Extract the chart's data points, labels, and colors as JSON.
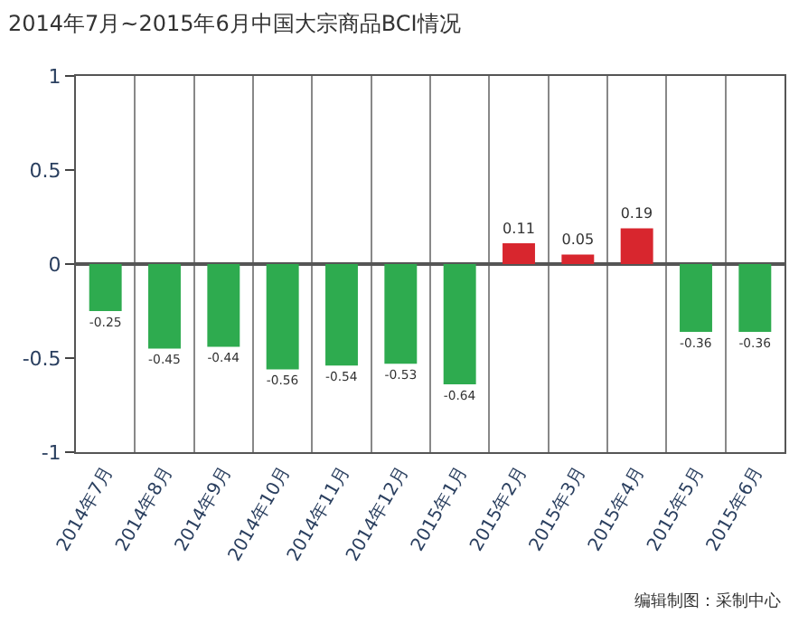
{
  "chart_data": {
    "type": "bar",
    "title": "2014年7月~2015年6月中国大宗商品BCI情况",
    "categories": [
      "2014年7月",
      "2014年8月",
      "2014年9月",
      "2014年10月",
      "2014年11月",
      "2014年12月",
      "2015年1月",
      "2015年2月",
      "2015年3月",
      "2015年4月",
      "2015年5月",
      "2015年6月"
    ],
    "values": [
      -0.25,
      -0.45,
      -0.44,
      -0.56,
      -0.54,
      -0.53,
      -0.64,
      0.11,
      0.05,
      0.19,
      -0.36,
      -0.36
    ],
    "colors": [
      "#2eab4f",
      "#2eab4f",
      "#2eab4f",
      "#2eab4f",
      "#2eab4f",
      "#2eab4f",
      "#2eab4f",
      "#d8262e",
      "#d8262e",
      "#d8262e",
      "#2eab4f",
      "#2eab4f"
    ],
    "ylim": [
      -1,
      1
    ],
    "yticks": [
      -1,
      -0.5,
      0,
      0.5,
      1
    ],
    "grid": "x",
    "data_labels": true,
    "annotations": [
      "编辑制图：采制中心"
    ]
  }
}
